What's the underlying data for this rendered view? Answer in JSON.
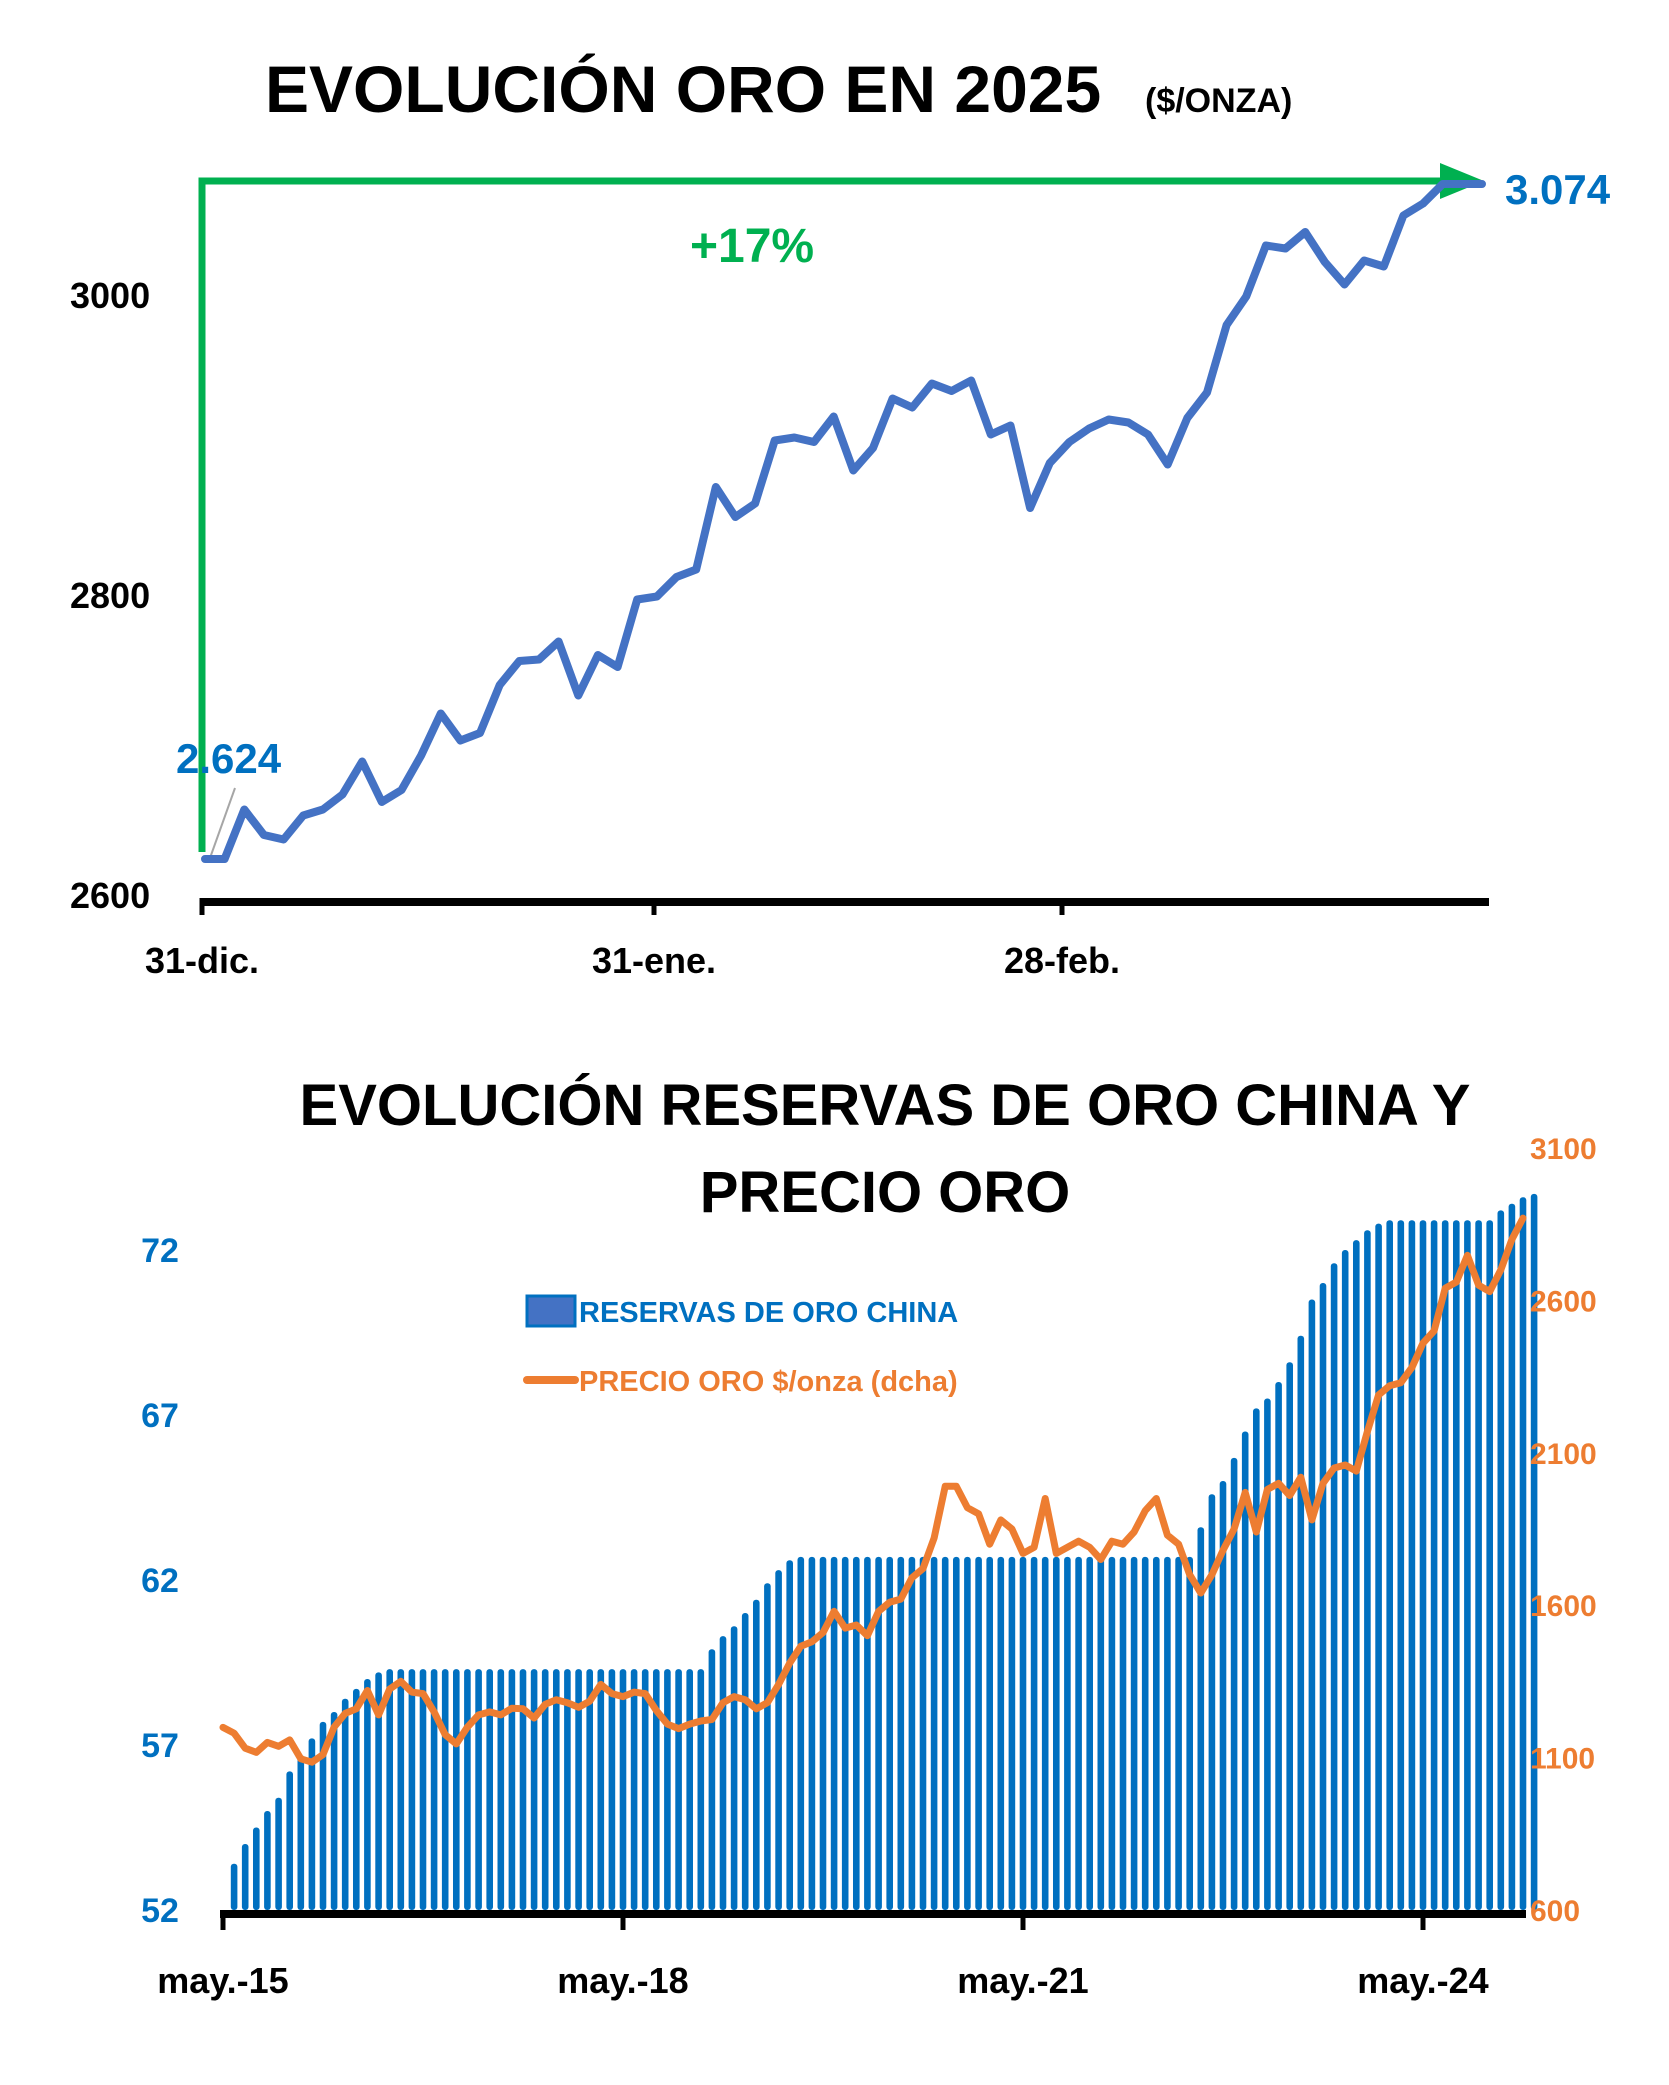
{
  "chart_data": [
    {
      "type": "line",
      "title": "EVOLUCIÓN ORO EN 2025",
      "title_unit": "($/ONZA)",
      "xlabel": "",
      "ylabel": "",
      "ylim": [
        2600,
        3080
      ],
      "yticks": [
        "2600",
        "2800",
        "3000"
      ],
      "ytick_values": [
        2600,
        2800,
        3000
      ],
      "xticks": [
        "31-dic.",
        "31-ene.",
        "28-feb."
      ],
      "grid": false,
      "colors": {
        "line": "#4472C4",
        "arrow": "#00B050",
        "labels": "#0070C0"
      },
      "annotations": {
        "start_label": "2.624",
        "end_label": "3.074",
        "change_label": "+17%"
      },
      "series": [
        {
          "name": "Oro $/onza",
          "x": [
            0,
            1,
            2,
            3,
            4,
            5,
            6,
            7,
            8,
            9,
            10,
            11,
            12,
            13,
            14,
            15,
            16,
            17,
            18,
            19,
            20,
            21,
            22,
            23,
            24,
            25,
            26,
            27,
            28,
            29,
            30,
            31,
            32,
            33,
            34,
            35,
            36,
            37,
            38,
            39,
            40,
            41,
            42,
            43,
            44,
            45,
            46,
            47,
            48,
            49,
            50,
            51,
            52,
            53,
            54,
            55,
            56,
            57,
            58,
            59,
            60,
            61,
            62,
            63,
            64,
            65
          ],
          "values": [
            2624,
            2624,
            2657,
            2640,
            2637,
            2653,
            2657,
            2667,
            2689,
            2662,
            2670,
            2693,
            2721,
            2703,
            2708,
            2740,
            2756,
            2757,
            2769,
            2733,
            2760,
            2752,
            2797,
            2799,
            2812,
            2817,
            2872,
            2852,
            2861,
            2903,
            2905,
            2902,
            2919,
            2883,
            2898,
            2931,
            2925,
            2941,
            2936,
            2943,
            2907,
            2913,
            2858,
            2888,
            2902,
            2911,
            2917,
            2915,
            2907,
            2887,
            2918,
            2935,
            2980,
            2999,
            3033,
            3031,
            3042,
            3022,
            3007,
            3023,
            3019,
            3053,
            3061,
            3074,
            3074,
            3074
          ],
          "x_tick_index": {
            "31-dic.": 0,
            "31-ene.": 22,
            "28-feb.": 41
          }
        }
      ]
    },
    {
      "type": "bar",
      "title": "EVOLUCIÓN RESERVAS DE ORO CHINA Y PRECIO ORO",
      "title_lines": [
        "EVOLUCIÓN RESERVAS DE ORO CHINA Y",
        "PRECIO ORO"
      ],
      "xlabel": "",
      "ylabel_left": "",
      "ylabel_right": "",
      "ylim_left": [
        52,
        77
      ],
      "ylim_right": [
        600,
        3100
      ],
      "yticks_left": [
        "52",
        "57",
        "62",
        "67",
        "72"
      ],
      "yticks_right": [
        "600",
        "1100",
        "1600",
        "2100",
        "2600",
        "3100"
      ],
      "xticks": [
        "may.-15",
        "may.-18",
        "may.-21",
        "may.-24"
      ],
      "x_start": "may.-15",
      "grid": false,
      "legend_position": "upper-left",
      "colors": {
        "bars": "#0070C0",
        "line": "#ED7D31"
      },
      "legend": [
        "RESERVAS DE ORO CHINA",
        "PRECIO ORO $/onza (dcha)"
      ],
      "series": [
        {
          "name": "RESERVAS DE ORO CHINA",
          "axis": "left",
          "kind": "bar",
          "months_from_start": 1,
          "values": [
            53.4,
            54.0,
            54.5,
            55.0,
            55.4,
            56.2,
            56.7,
            57.2,
            57.7,
            58.0,
            58.4,
            58.7,
            59.0,
            59.2,
            59.3,
            59.3,
            59.3,
            59.3,
            59.3,
            59.3,
            59.3,
            59.3,
            59.3,
            59.3,
            59.3,
            59.3,
            59.3,
            59.3,
            59.3,
            59.3,
            59.3,
            59.3,
            59.3,
            59.3,
            59.3,
            59.3,
            59.3,
            59.3,
            59.3,
            59.3,
            59.3,
            59.3,
            59.3,
            59.9,
            60.3,
            60.6,
            61.0,
            61.4,
            61.9,
            62.3,
            62.6,
            62.7,
            62.7,
            62.7,
            62.7,
            62.7,
            62.7,
            62.7,
            62.7,
            62.7,
            62.7,
            62.7,
            62.7,
            62.7,
            62.7,
            62.7,
            62.7,
            62.7,
            62.7,
            62.7,
            62.7,
            62.7,
            62.7,
            62.7,
            62.7,
            62.7,
            62.7,
            62.7,
            62.7,
            62.7,
            62.7,
            62.7,
            62.7,
            62.7,
            62.7,
            62.7,
            62.7,
            63.6,
            64.6,
            65.0,
            65.7,
            66.5,
            67.2,
            67.5,
            68.0,
            68.6,
            69.4,
            70.5,
            71.0,
            71.6,
            72.0,
            72.3,
            72.6,
            72.8,
            72.9,
            72.9,
            72.9,
            72.9,
            72.9,
            72.9,
            72.9,
            72.9,
            72.9,
            72.9,
            73.2,
            73.4,
            73.6,
            73.7
          ]
        },
        {
          "name": "PRECIO ORO $/onza (dcha)",
          "axis": "right",
          "kind": "line",
          "months_from_start": 0,
          "values": [
            1199,
            1180,
            1131,
            1117,
            1150,
            1137,
            1158,
            1096,
            1085,
            1110,
            1200,
            1245,
            1260,
            1320,
            1240,
            1325,
            1350,
            1315,
            1310,
            1250,
            1175,
            1145,
            1200,
            1240,
            1250,
            1240,
            1262,
            1260,
            1230,
            1275,
            1290,
            1280,
            1265,
            1285,
            1340,
            1310,
            1300,
            1315,
            1310,
            1255,
            1210,
            1195,
            1210,
            1220,
            1225,
            1280,
            1300,
            1290,
            1260,
            1280,
            1340,
            1410,
            1465,
            1480,
            1510,
            1580,
            1525,
            1535,
            1500,
            1580,
            1610,
            1620,
            1690,
            1720,
            1820,
            1990,
            1990,
            1920,
            1900,
            1800,
            1880,
            1850,
            1770,
            1790,
            1950,
            1770,
            1790,
            1810,
            1790,
            1750,
            1810,
            1800,
            1840,
            1910,
            1950,
            1830,
            1800,
            1700,
            1640,
            1700,
            1780,
            1850,
            1970,
            1840,
            1980,
            2000,
            1960,
            2020,
            1880,
            2000,
            2050,
            2060,
            2040,
            2170,
            2290,
            2320,
            2330,
            2380,
            2460,
            2500,
            2640,
            2660,
            2748,
            2650,
            2629,
            2700,
            2800,
            2870
          ]
        }
      ]
    }
  ]
}
